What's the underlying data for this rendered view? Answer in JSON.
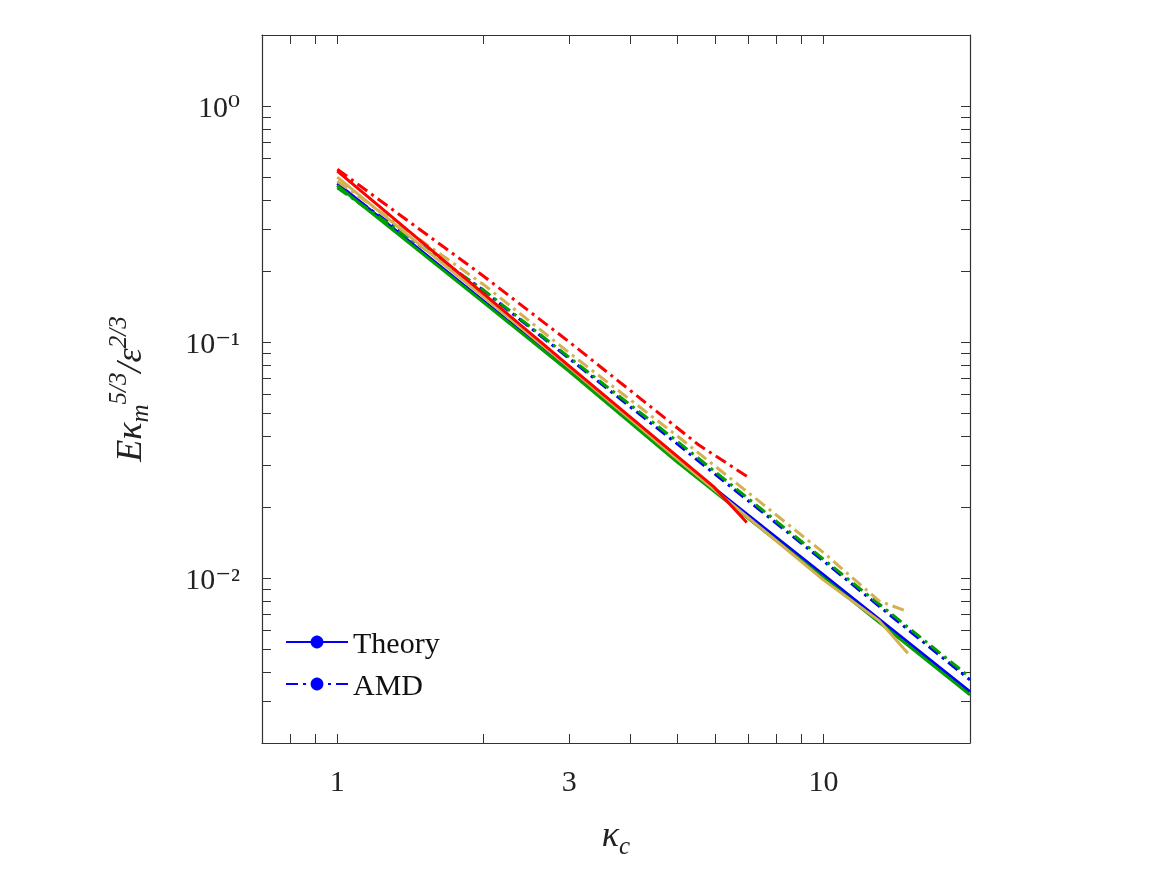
{
  "chart_data": {
    "type": "line",
    "xlabel": "κ$_{c}$",
    "ylabel": "Eκ$_{m}$$^{5/3}$/ε$^{2/3}$",
    "log": "xy",
    "legend": "bottom left",
    "marker": "none",
    "xlim": [
      0.7,
      20
    ],
    "ylim": [
      0.002,
      2
    ],
    "xticks": [
      {
        "value": 0.7,
        "label": null
      },
      {
        "value": 0.8,
        "label": null
      },
      {
        "value": 0.9,
        "label": null
      },
      1,
      {
        "value": 2,
        "label": null
      },
      3,
      {
        "value": 4,
        "label": null
      },
      {
        "value": 5,
        "label": null
      },
      {
        "value": 6,
        "label": null
      },
      {
        "value": 7,
        "label": null
      },
      {
        "value": 8,
        "label": null
      },
      {
        "value": 9,
        "label": null
      },
      10,
      {
        "value": 20,
        "label": null
      }
    ],
    "yticks": [
      {
        "value": 0.002,
        "label": null
      },
      {
        "value": 0.003,
        "label": null
      },
      {
        "value": 0.004,
        "label": null
      },
      {
        "value": 0.005,
        "label": null
      },
      {
        "value": 0.006,
        "label": null
      },
      {
        "value": 0.007,
        "label": null
      },
      {
        "value": 0.008,
        "label": null
      },
      {
        "value": 0.009,
        "label": null
      },
      {
        "value": 0.01,
        "label": "10⁻²"
      },
      {
        "value": 0.02,
        "label": null
      },
      {
        "value": 0.03,
        "label": null
      },
      {
        "value": 0.04,
        "label": null
      },
      {
        "value": 0.05,
        "label": null
      },
      {
        "value": 0.06,
        "label": null
      },
      {
        "value": 0.07,
        "label": null
      },
      {
        "value": 0.08,
        "label": null
      },
      {
        "value": 0.09,
        "label": null
      },
      {
        "value": 0.1,
        "label": "10⁻¹"
      },
      {
        "value": 0.2,
        "label": null
      },
      {
        "value": 0.3,
        "label": null
      },
      {
        "value": 0.4,
        "label": null
      },
      {
        "value": 0.5,
        "label": null
      },
      {
        "value": 0.6,
        "label": null
      },
      {
        "value": 0.7,
        "label": null
      },
      {
        "value": 0.8,
        "label": null
      },
      {
        "value": 0.9,
        "label": null
      },
      {
        "value": 1,
        "label": "10⁰"
      },
      {
        "value": 2,
        "label": null
      }
    ],
    "series": [
      {
        "name": "Theory",
        "color": "#0000ff",
        "line_style": "solid",
        "x": [
          1,
          2,
          3,
          5,
          10,
          20
        ],
        "values": [
          0.47,
          0.149,
          0.076,
          0.032,
          0.0103,
          0.0033
        ]
      },
      {
        "name": "AMD",
        "color": "#0000ff",
        "line_style": "dashdot",
        "x": [
          1,
          2,
          3,
          5,
          10,
          20
        ],
        "values": [
          0.46,
          0.165,
          0.085,
          0.037,
          0.0118,
          0.0037
        ]
      },
      {
        "color": "#00a000",
        "line_style": "solid",
        "x": [
          1,
          2,
          3,
          5,
          10,
          20
        ],
        "values": [
          0.46,
          0.147,
          0.075,
          0.031,
          0.01,
          0.0032
        ]
      },
      {
        "color": "#00a000",
        "line_style": "dashdot",
        "x": [
          1,
          2,
          3,
          5,
          10,
          20
        ],
        "values": [
          0.45,
          0.166,
          0.086,
          0.038,
          0.012,
          0.0038
        ]
      },
      {
        "color": "#d4b052",
        "line_style": "solid",
        "x": [
          1,
          2,
          3,
          5,
          10,
          13,
          14.9
        ],
        "values": [
          0.5,
          0.155,
          0.078,
          0.032,
          0.0098,
          0.0066,
          0.0048
        ]
      },
      {
        "color": "#d4b052",
        "line_style": "dashdot",
        "x": [
          1,
          2,
          3,
          5,
          10,
          13,
          14.9
        ],
        "values": [
          0.48,
          0.175,
          0.09,
          0.04,
          0.0128,
          0.008,
          0.0072
        ]
      },
      {
        "color": "#ff0000",
        "line_style": "solid",
        "x": [
          1,
          2,
          3,
          5.94,
          6.95
        ],
        "values": [
          0.53,
          0.16,
          0.079,
          0.0244,
          0.0172
        ]
      },
      {
        "color": "#ff0000",
        "line_style": "dashdot",
        "x": [
          1,
          2,
          3,
          5.53,
          6.95
        ],
        "values": [
          0.54,
          0.19,
          0.1,
          0.0367,
          0.027
        ]
      }
    ]
  }
}
